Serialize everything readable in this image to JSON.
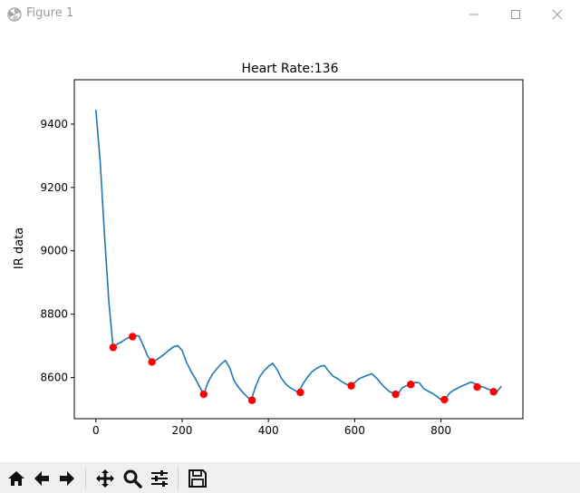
{
  "window": {
    "title": "Figure 1",
    "icon": "matplotlib-logo-icon",
    "controls": [
      "minimize-icon",
      "maximize-icon",
      "close-icon"
    ]
  },
  "toolbar": {
    "buttons": [
      {
        "name": "home-button",
        "icon": "home-icon"
      },
      {
        "name": "back-button",
        "icon": "arrow-left-icon"
      },
      {
        "name": "forward-button",
        "icon": "arrow-right-icon"
      },
      {
        "name": "pan-button",
        "icon": "move-icon"
      },
      {
        "name": "zoom-button",
        "icon": "magnifier-icon"
      },
      {
        "name": "configure-subplots-button",
        "icon": "sliders-icon"
      },
      {
        "name": "save-button",
        "icon": "floppy-disk-icon"
      }
    ]
  },
  "colors": {
    "line": "#1f77b4",
    "peaks": "#ff0000"
  },
  "chart_data": {
    "type": "line",
    "title": "Heart Rate:136",
    "xlabel": "",
    "ylabel": "IR data",
    "xlim": [
      -50,
      990
    ],
    "ylim": [
      8470,
      9540
    ],
    "xticks": [
      0,
      200,
      400,
      600,
      800
    ],
    "yticks": [
      8600,
      8800,
      9000,
      9200,
      9400
    ],
    "grid": false,
    "series": [
      {
        "x": [
          0,
          10,
          20,
          30,
          40,
          50,
          60,
          70,
          80,
          90,
          100,
          110,
          120,
          130,
          140,
          150,
          160,
          170,
          180,
          190,
          200,
          210,
          220,
          230,
          240,
          250,
          260,
          270,
          280,
          290,
          300,
          310,
          320,
          330,
          340,
          350,
          360,
          370,
          380,
          390,
          400,
          410,
          420,
          430,
          440,
          450,
          460,
          470,
          480,
          490,
          500,
          510,
          520,
          530,
          540,
          550,
          560,
          570,
          580,
          590,
          600,
          610,
          620,
          630,
          640,
          650,
          660,
          670,
          680,
          690,
          700,
          710,
          720,
          730,
          740,
          750,
          760,
          770,
          780,
          790,
          800,
          810,
          820,
          830,
          840,
          850,
          860,
          870,
          880,
          890,
          900,
          910,
          920,
          930,
          940
        ],
        "values": [
          9445,
          9280,
          9050,
          8840,
          8695,
          8706,
          8713,
          8722,
          8728,
          8733,
          8731,
          8700,
          8668,
          8649,
          8655,
          8665,
          8675,
          8687,
          8697,
          8701,
          8685,
          8648,
          8621,
          8598,
          8572,
          8547,
          8585,
          8610,
          8627,
          8642,
          8654,
          8632,
          8591,
          8570,
          8554,
          8540,
          8528,
          8570,
          8603,
          8621,
          8635,
          8645,
          8625,
          8598,
          8580,
          8568,
          8560,
          8553,
          8580,
          8600,
          8617,
          8627,
          8635,
          8638,
          8619,
          8604,
          8597,
          8587,
          8579,
          8574,
          8584,
          8596,
          8602,
          8607,
          8612,
          8599,
          8583,
          8568,
          8556,
          8550,
          8547,
          8567,
          8574,
          8578,
          8585,
          8583,
          8565,
          8557,
          8550,
          8541,
          8530,
          8531,
          8551,
          8560,
          8567,
          8574,
          8580,
          8586,
          8580,
          8573,
          8569,
          8563,
          8560,
          8555,
          8572
        ]
      }
    ],
    "peaks": {
      "x": [
        40,
        85,
        130,
        250,
        362,
        474,
        592,
        695,
        730,
        808,
        884,
        922
      ],
      "y": [
        8695,
        8729,
        8649,
        8547,
        8528,
        8553,
        8574,
        8547,
        8578,
        8530,
        8570,
        8555
      ]
    }
  }
}
